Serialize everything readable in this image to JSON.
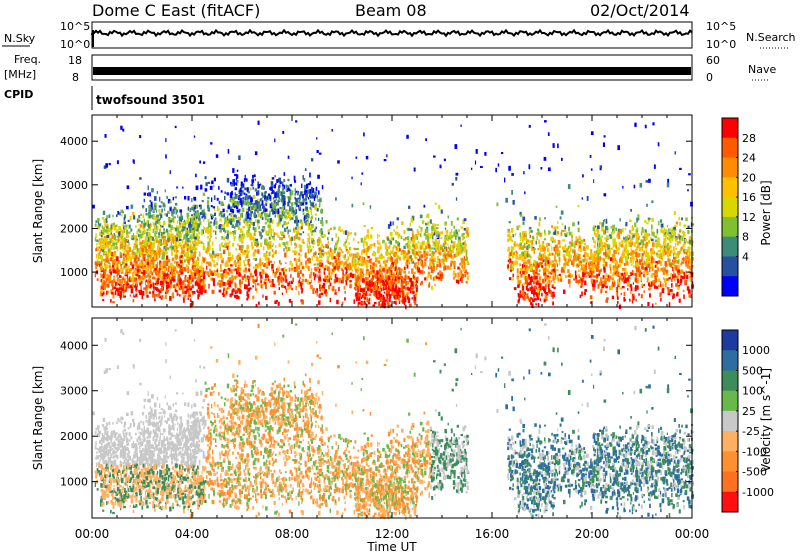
{
  "header": {
    "title": "Dome C East (fitACF)",
    "beam": "Beam 08",
    "date": "02/Oct/2014"
  },
  "top_panels": {
    "nsky_label": "N.Sky",
    "nsky_ticks": [
      "10^5",
      "10^0"
    ],
    "nsearch_label": "N.Search",
    "nsearch_ticks": [
      "10^5",
      "10^0"
    ],
    "freq_label": "Freq.",
    "freq_unit": "[MHz]",
    "freq_ticks": [
      "18",
      "8"
    ],
    "nave_label": "Nave",
    "nave_ticks": [
      "60",
      "0"
    ],
    "cpid_label": "CPID",
    "cpid_text": "twofsound 3501"
  },
  "chart_data": [
    {
      "type": "heatmap",
      "panel": "power",
      "ylabel": "Slant Range [km]",
      "xlabel": "",
      "yticks": [
        1000,
        2000,
        3000,
        4000
      ],
      "ylim": [
        200,
        4600
      ],
      "xlim": [
        0,
        24
      ],
      "colorbar": {
        "label": "Power [dB]",
        "ticks": [
          "28",
          "24",
          "20",
          "16",
          "12",
          "8",
          "4"
        ],
        "colors": [
          "#ff0000",
          "#ff5a00",
          "#ff8c00",
          "#ffc000",
          "#d8d800",
          "#80c030",
          "#3c8c78",
          "#2850a0",
          "#0000ff"
        ]
      }
    },
    {
      "type": "heatmap",
      "panel": "velocity",
      "ylabel": "Slant Range [km]",
      "xlabel": "Time UT",
      "yticks": [
        1000,
        2000,
        3000,
        4000
      ],
      "ylim": [
        200,
        4600
      ],
      "xlim": [
        0,
        24
      ],
      "xticks": [
        "00:00",
        "04:00",
        "08:00",
        "12:00",
        "16:00",
        "20:00",
        "00:00"
      ],
      "colorbar": {
        "label": "Velocity [m s^-1]",
        "ticks": [
          "1000",
          "500",
          "100",
          "25",
          "-25",
          "-100",
          "-500",
          "-1000"
        ],
        "colors": [
          "#1c3aa0",
          "#2c6ea0",
          "#3c8c5c",
          "#68b84c",
          "#c8c8c8",
          "#ffb060",
          "#ff9030",
          "#ff7020",
          "#ff1010"
        ]
      }
    }
  ]
}
